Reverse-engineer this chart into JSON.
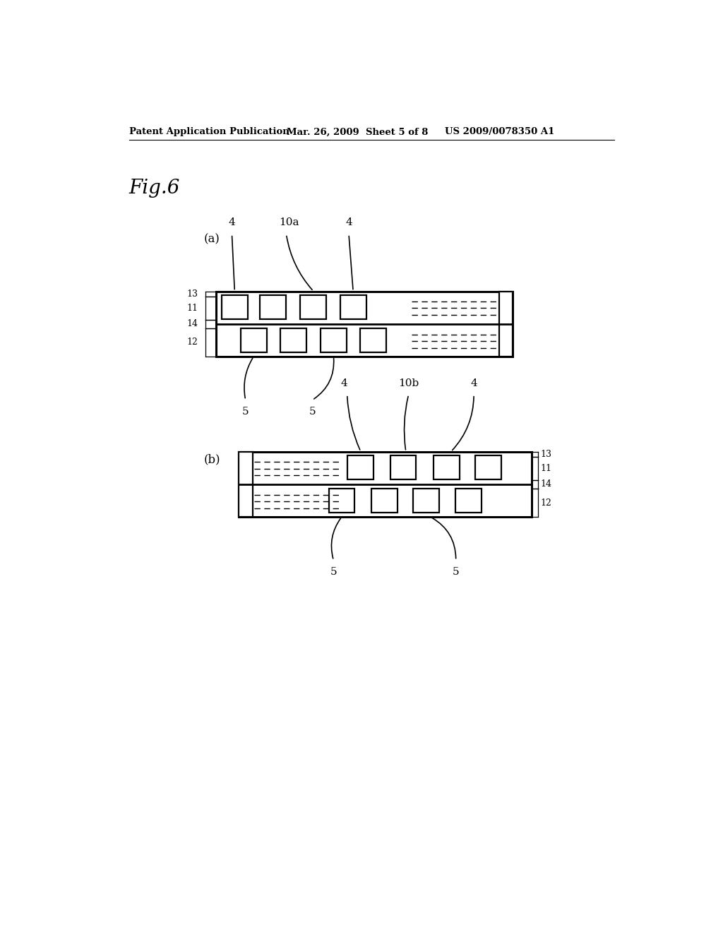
{
  "bg_color": "#ffffff",
  "header_left": "Patent Application Publication",
  "header_mid": "Mar. 26, 2009  Sheet 5 of 8",
  "header_right": "US 2009/0078350 A1",
  "fig_label": "Fig.6",
  "sub_a_label": "(a)",
  "sub_b_label": "(b)"
}
